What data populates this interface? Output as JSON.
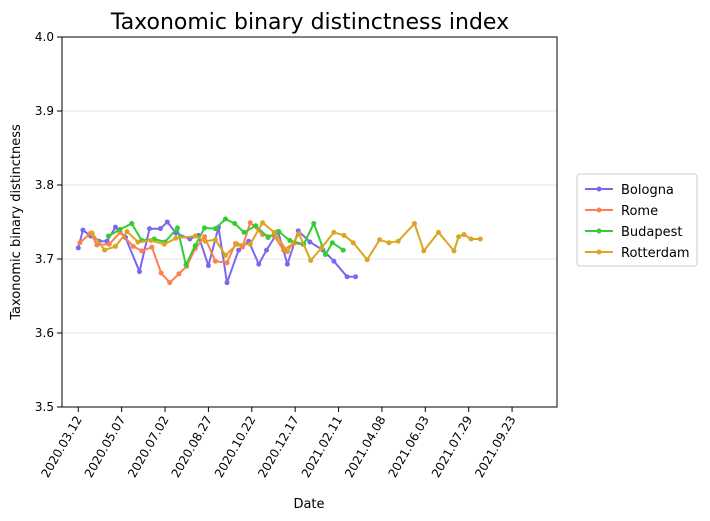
{
  "chart_data": {
    "type": "line",
    "title": "Taxonomic binary distinctness index",
    "xlabel": "Date",
    "ylabel": "Taxonomic binary distinctness",
    "ylim": [
      3.5,
      4.0
    ],
    "yticks": [
      "3.5",
      "3.6",
      "3.7",
      "3.8",
      "3.9",
      "4.0"
    ],
    "xlim": [
      "2020-02-20",
      "2021-11-20"
    ],
    "xticks": [
      "2020.03.12",
      "2020.05.07",
      "2020.07.02",
      "2020.08.27",
      "2020.10.22",
      "2020.12.17",
      "2021.02.11",
      "2021.04.08",
      "2021.06.03",
      "2021.07.29",
      "2021.09.23"
    ],
    "grid": "horizontal",
    "legend_position": "right",
    "series": [
      {
        "name": "Bologna",
        "color": "#7b68ee",
        "points": [
          [
            "2020-03-12",
            3.715
          ],
          [
            "2020-03-18",
            3.739
          ],
          [
            "2020-03-28",
            3.731
          ],
          [
            "2020-04-08",
            3.724
          ],
          [
            "2020-04-18",
            3.724
          ],
          [
            "2020-04-29",
            3.743
          ],
          [
            "2020-05-12",
            3.729
          ],
          [
            "2020-05-30",
            3.683
          ],
          [
            "2020-06-12",
            3.741
          ],
          [
            "2020-06-26",
            3.741
          ],
          [
            "2020-07-05",
            3.75
          ],
          [
            "2020-07-16",
            3.735
          ],
          [
            "2020-08-03",
            3.727
          ],
          [
            "2020-08-14",
            3.732
          ],
          [
            "2020-08-27",
            3.691
          ],
          [
            "2020-09-09",
            3.743
          ],
          [
            "2020-09-20",
            3.668
          ],
          [
            "2020-10-05",
            3.712
          ],
          [
            "2020-10-18",
            3.724
          ],
          [
            "2020-10-31",
            3.693
          ],
          [
            "2020-11-10",
            3.712
          ],
          [
            "2020-11-25",
            3.737
          ],
          [
            "2020-12-07",
            3.693
          ],
          [
            "2020-12-21",
            3.738
          ],
          [
            "2021-01-05",
            3.723
          ],
          [
            "2021-01-22",
            3.712
          ],
          [
            "2021-02-05",
            3.697
          ],
          [
            "2021-02-22",
            3.676
          ],
          [
            "2021-03-05",
            3.676
          ]
        ]
      },
      {
        "name": "Rome",
        "color": "#ff7f50",
        "points": [
          [
            "2020-03-14",
            3.722
          ],
          [
            "2020-03-28",
            3.735
          ],
          [
            "2020-04-05",
            3.719
          ],
          [
            "2020-04-21",
            3.72
          ],
          [
            "2020-05-05",
            3.736
          ],
          [
            "2020-05-22",
            3.717
          ],
          [
            "2020-06-02",
            3.711
          ],
          [
            "2020-06-15",
            3.716
          ],
          [
            "2020-06-27",
            3.681
          ],
          [
            "2020-07-08",
            3.668
          ],
          [
            "2020-07-20",
            3.68
          ],
          [
            "2020-07-30",
            3.69
          ],
          [
            "2020-08-10",
            3.714
          ],
          [
            "2020-08-22",
            3.73
          ],
          [
            "2020-09-05",
            3.697
          ],
          [
            "2020-09-20",
            3.695
          ],
          [
            "2020-10-01",
            3.721
          ],
          [
            "2020-10-10",
            3.716
          ],
          [
            "2020-10-20",
            3.749
          ],
          [
            "2020-11-05",
            3.733
          ],
          [
            "2020-11-20",
            3.731
          ],
          [
            "2020-12-02",
            3.712
          ],
          [
            "2020-12-15",
            3.721
          ],
          [
            "2020-12-27",
            3.72
          ]
        ]
      },
      {
        "name": "Budapest",
        "color": "#32cd32",
        "points": [
          [
            "2020-04-20",
            3.731
          ],
          [
            "2020-05-05",
            3.74
          ],
          [
            "2020-05-20",
            3.748
          ],
          [
            "2020-06-02",
            3.725
          ],
          [
            "2020-06-18",
            3.727
          ],
          [
            "2020-07-02",
            3.723
          ],
          [
            "2020-07-18",
            3.742
          ],
          [
            "2020-07-29",
            3.692
          ],
          [
            "2020-08-10",
            3.718
          ],
          [
            "2020-08-22",
            3.742
          ],
          [
            "2020-09-05",
            3.741
          ],
          [
            "2020-09-18",
            3.754
          ],
          [
            "2020-09-30",
            3.748
          ],
          [
            "2020-10-12",
            3.736
          ],
          [
            "2020-10-27",
            3.745
          ],
          [
            "2020-11-12",
            3.729
          ],
          [
            "2020-11-26",
            3.737
          ],
          [
            "2020-12-10",
            3.725
          ],
          [
            "2020-12-28",
            3.72
          ],
          [
            "2021-01-10",
            3.748
          ],
          [
            "2021-01-25",
            3.706
          ],
          [
            "2021-02-03",
            3.722
          ],
          [
            "2021-02-17",
            3.712
          ]
        ]
      },
      {
        "name": "Rotterdam",
        "color": "#daa520",
        "points": [
          [
            "2020-03-30",
            3.735
          ],
          [
            "2020-04-15",
            3.712
          ],
          [
            "2020-04-29",
            3.717
          ],
          [
            "2020-05-14",
            3.737
          ],
          [
            "2020-05-28",
            3.723
          ],
          [
            "2020-06-14",
            3.725
          ],
          [
            "2020-07-01",
            3.72
          ],
          [
            "2020-07-16",
            3.728
          ],
          [
            "2020-08-10",
            3.731
          ],
          [
            "2020-08-23",
            3.724
          ],
          [
            "2020-09-05",
            3.726
          ],
          [
            "2020-09-18",
            3.705
          ],
          [
            "2020-10-03",
            3.72
          ],
          [
            "2020-10-20",
            3.72
          ],
          [
            "2020-11-05",
            3.749
          ],
          [
            "2020-11-20",
            3.736
          ],
          [
            "2020-12-07",
            3.71
          ],
          [
            "2020-12-22",
            3.734
          ],
          [
            "2021-01-06",
            3.698
          ],
          [
            "2021-01-20",
            3.715
          ],
          [
            "2021-02-05",
            3.736
          ],
          [
            "2021-02-18",
            3.732
          ],
          [
            "2021-03-02",
            3.722
          ],
          [
            "2021-03-20",
            3.699
          ],
          [
            "2021-04-05",
            3.726
          ],
          [
            "2021-04-17",
            3.722
          ],
          [
            "2021-04-29",
            3.724
          ],
          [
            "2021-05-20",
            3.748
          ],
          [
            "2021-06-01",
            3.711
          ],
          [
            "2021-06-20",
            3.736
          ],
          [
            "2021-07-10",
            3.711
          ],
          [
            "2021-07-16",
            3.73
          ],
          [
            "2021-07-23",
            3.733
          ],
          [
            "2021-08-01",
            3.727
          ],
          [
            "2021-08-13",
            3.727
          ]
        ]
      }
    ]
  }
}
